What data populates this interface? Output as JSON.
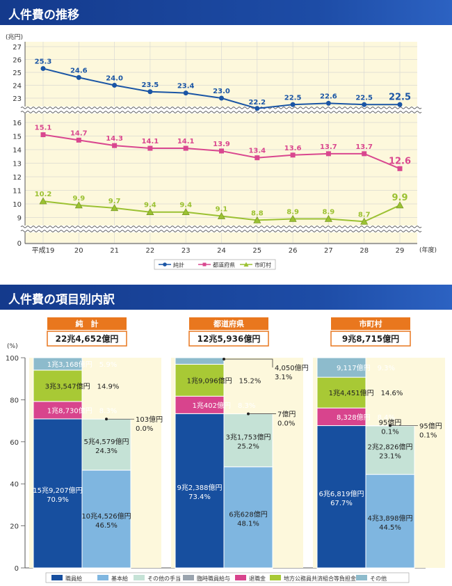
{
  "section1": {
    "title": "人件費の推移"
  },
  "section2": {
    "title": "人件費の項目別内訳"
  },
  "chart_data": [
    {
      "type": "line",
      "ylabel": "(兆円)",
      "xlabel": "(年度)",
      "x": [
        "平成19",
        "20",
        "21",
        "22",
        "23",
        "24",
        "25",
        "26",
        "27",
        "28",
        "29"
      ],
      "y_ticks": [
        0,
        9,
        10,
        11,
        12,
        13,
        14,
        15,
        16,
        23,
        24,
        25,
        26,
        27
      ],
      "axis_breaks": [
        "0-8",
        "17-22"
      ],
      "legend_position": "bottom",
      "series": [
        {
          "name": "純計",
          "color": "#1a55a5",
          "marker": "circle",
          "values": [
            25.3,
            24.6,
            24.0,
            23.5,
            23.4,
            23.0,
            22.2,
            22.5,
            22.6,
            22.5,
            22.5
          ],
          "labels": [
            "25.3",
            "24.6",
            "24.0",
            "23.5",
            "23.4",
            "23.0",
            "22.2",
            "22.5",
            "22.6",
            "22.5",
            "22.5"
          ]
        },
        {
          "name": "都道府県",
          "color": "#d9478f",
          "marker": "square",
          "values": [
            15.1,
            14.7,
            14.3,
            14.1,
            14.1,
            13.9,
            13.4,
            13.6,
            13.7,
            13.7,
            12.6
          ],
          "labels": [
            "15.1",
            "14.7",
            "14.3",
            "14.1",
            "14.1",
            "13.9",
            "13.4",
            "13.6",
            "13.7",
            "13.7",
            "12.6"
          ]
        },
        {
          "name": "市町村",
          "color": "#9bc132",
          "marker": "triangle",
          "values": [
            10.2,
            9.9,
            9.7,
            9.4,
            9.4,
            9.1,
            8.8,
            8.9,
            8.9,
            8.7,
            9.9
          ],
          "labels": [
            "10.2",
            "9.9",
            "9.7",
            "9.4",
            "9.4",
            "9.1",
            "8.8",
            "8.9",
            "8.9",
            "8.7",
            "9.9"
          ]
        }
      ]
    },
    {
      "type": "bar",
      "stacked": true,
      "ylabel": "(%)",
      "ylim": [
        0,
        100
      ],
      "y_ticks": [
        0,
        20,
        40,
        60,
        80,
        100
      ],
      "legend": [
        {
          "name": "職員給",
          "color": "#174f9f"
        },
        {
          "name": "基本給",
          "color": "#7fb6e0"
        },
        {
          "name": "その他の手当",
          "color": "#c5e2d6"
        },
        {
          "name": "臨時職員給与",
          "color": "#9aa4ae"
        },
        {
          "name": "退職金",
          "color": "#d8448d"
        },
        {
          "name": "地方公務員共済組合等負担金",
          "color": "#a8c935"
        },
        {
          "name": "その他",
          "color": "#8dbbcc"
        }
      ],
      "groups": [
        {
          "name": "純　計",
          "total": "22兆4,652億円",
          "main": [
            {
              "name": "職員給",
              "value": 70.9,
              "amount": "15兆9,207億円",
              "pct": "70.9%"
            },
            {
              "name": "退職金",
              "value": 8.3,
              "amount": "1兆8,730億円",
              "pct": "8.3%"
            },
            {
              "name": "地方公務員共済組合等負担金",
              "value": 14.9,
              "amount": "3兆3,547億円",
              "pct": "14.9%"
            },
            {
              "name": "その他",
              "value": 5.9,
              "amount": "1兆3,168億円",
              "pct": "5.9%"
            }
          ],
          "breakdown": [
            {
              "name": "基本給",
              "value": 46.5,
              "amount": "10兆4,526億円",
              "pct": "46.5%"
            },
            {
              "name": "その他の手当",
              "value": 24.3,
              "amount": "5兆4,579億円",
              "pct": "24.3%"
            },
            {
              "name": "臨時職員給与",
              "value": 0.0,
              "amount": "103億円",
              "pct": "0.0%"
            }
          ]
        },
        {
          "name": "都道府県",
          "total": "12兆5,936億円",
          "main": [
            {
              "name": "職員給",
              "value": 73.4,
              "amount": "9兆2,388億円",
              "pct": "73.4%"
            },
            {
              "name": "退職金",
              "value": 8.3,
              "amount": "1兆402億円",
              "pct": "8.3%"
            },
            {
              "name": "地方公務員共済組合等負担金",
              "value": 15.2,
              "amount": "1兆9,096億円",
              "pct": "15.2%"
            },
            {
              "name": "その他",
              "value": 3.1,
              "amount": "4,050億円",
              "pct": "3.1%"
            }
          ],
          "breakdown": [
            {
              "name": "基本給",
              "value": 48.1,
              "amount": "6兆628億円",
              "pct": "48.1%"
            },
            {
              "name": "その他の手当",
              "value": 25.2,
              "amount": "3兆1,753億円",
              "pct": "25.2%"
            },
            {
              "name": "臨時職員給与",
              "value": 0.0,
              "amount": "7億円",
              "pct": "0.0%"
            }
          ]
        },
        {
          "name": "市町村",
          "total": "9兆8,715億円",
          "main": [
            {
              "name": "職員給",
              "value": 67.7,
              "amount": "6兆6,819億円",
              "pct": "67.7%"
            },
            {
              "name": "退職金",
              "value": 8.4,
              "amount": "8,328億円",
              "pct": "8.4%"
            },
            {
              "name": "地方公務員共済組合等負担金",
              "value": 14.6,
              "amount": "1兆4,451億円",
              "pct": "14.6%"
            },
            {
              "name": "その他",
              "value": 9.3,
              "amount": "9,117億円",
              "pct": "9.3%"
            }
          ],
          "breakdown": [
            {
              "name": "基本給",
              "value": 44.5,
              "amount": "4兆3,898億円",
              "pct": "44.5%"
            },
            {
              "name": "その他の手当",
              "value": 23.1,
              "amount": "2兆2,826億円",
              "pct": "23.1%"
            },
            {
              "name": "臨時職員給与",
              "value": 0.1,
              "amount": "95億円",
              "pct": "0.1%"
            }
          ]
        }
      ]
    }
  ]
}
